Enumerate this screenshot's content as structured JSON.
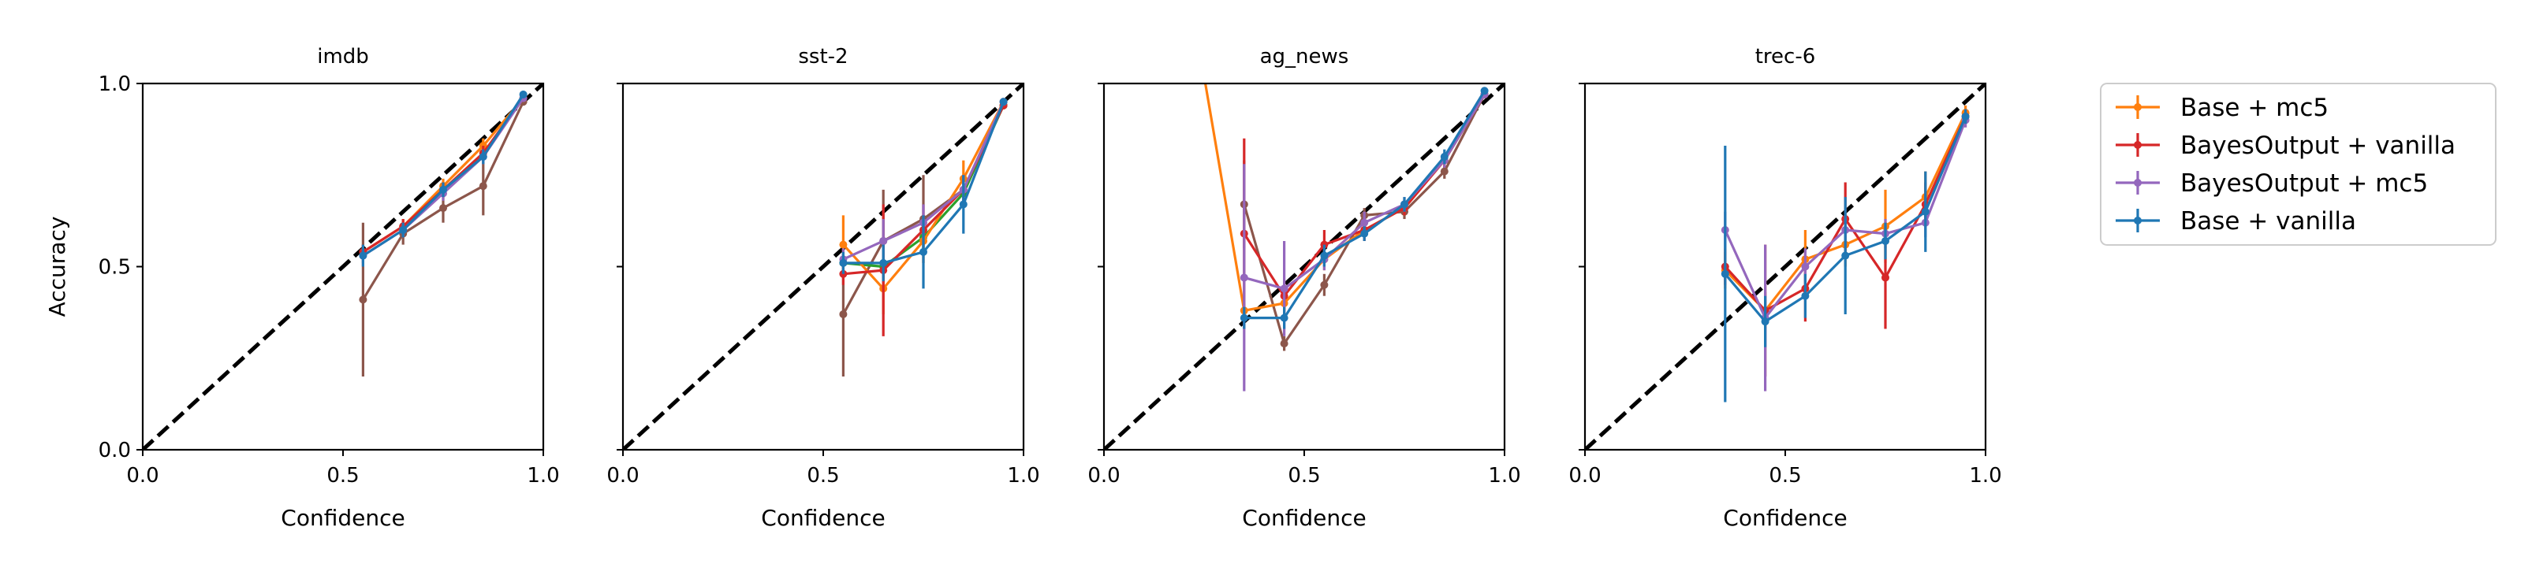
{
  "figure": {
    "legend": {
      "placement": "right, outside plots",
      "entries": [
        "Base + mc5",
        "BayesOutput + vanilla",
        "BayesOutput + mc5",
        "Base + vanilla"
      ]
    }
  },
  "chart_data": [
    {
      "type": "line",
      "title": "imdb",
      "xlabel": "Confidence",
      "ylabel": "Accuracy",
      "xlim": [
        0,
        1
      ],
      "ylim": [
        0,
        1
      ],
      "xticks": [
        0.0,
        0.5,
        1.0
      ],
      "yticks": [
        0.0,
        0.5,
        1.0
      ],
      "xtick_labels": [
        "0.0",
        "0.5",
        "1.0"
      ],
      "ytick_labels": [
        "0.0",
        "0.5",
        "1.0"
      ],
      "reference_line": {
        "from": [
          0,
          0
        ],
        "to": [
          1,
          1
        ],
        "style": "dashed",
        "color": "#000000"
      },
      "series": [
        {
          "color": "#8c564b",
          "legend": false,
          "x": [
            0.55,
            0.65,
            0.75,
            0.85,
            0.95
          ],
          "y": [
            0.41,
            0.59,
            0.66,
            0.72,
            0.95
          ],
          "err": [
            0.21,
            0.03,
            0.04,
            0.08,
            0.01
          ]
        },
        {
          "name": "Base + mc5",
          "color": "#ff7f0e",
          "legend": true,
          "x": [
            0.55,
            0.65,
            0.75,
            0.85,
            0.95
          ],
          "y": [
            0.54,
            0.61,
            0.72,
            0.83,
            0.96
          ],
          "err": [
            0.02,
            0.02,
            0.02,
            0.02,
            0.01
          ]
        },
        {
          "name": "BayesOutput + vanilla",
          "color": "#d62728",
          "legend": true,
          "x": [
            0.55,
            0.65,
            0.75,
            0.85,
            0.95
          ],
          "y": [
            0.54,
            0.61,
            0.71,
            0.81,
            0.96
          ],
          "err": [
            0.02,
            0.02,
            0.02,
            0.02,
            0.01
          ]
        },
        {
          "name": "BayesOutput + mc5",
          "color": "#9467bd",
          "legend": true,
          "x": [
            0.55,
            0.65,
            0.75,
            0.85,
            0.95
          ],
          "y": [
            0.53,
            0.6,
            0.7,
            0.8,
            0.96
          ],
          "err": [
            0.02,
            0.02,
            0.02,
            0.02,
            0.01
          ]
        },
        {
          "name": "Base + vanilla",
          "color": "#1f77b4",
          "legend": true,
          "x": [
            0.55,
            0.65,
            0.75,
            0.85,
            0.95
          ],
          "y": [
            0.53,
            0.6,
            0.71,
            0.8,
            0.97
          ],
          "err": [
            0.03,
            0.02,
            0.02,
            0.02,
            0.01
          ]
        }
      ]
    },
    {
      "type": "line",
      "title": "sst-2",
      "xlabel": "Confidence",
      "ylabel": "",
      "xlim": [
        0,
        1
      ],
      "ylim": [
        0,
        1
      ],
      "xticks": [
        0.0,
        0.5,
        1.0
      ],
      "yticks": [
        0.0,
        0.5,
        1.0
      ],
      "xtick_labels": [
        "0.0",
        "0.5",
        "1.0"
      ],
      "ytick_labels": [],
      "reference_line": {
        "from": [
          0,
          0
        ],
        "to": [
          1,
          1
        ],
        "style": "dashed",
        "color": "#000000"
      },
      "series": [
        {
          "color": "#8c564b",
          "legend": false,
          "x": [
            0.55,
            0.65,
            0.75,
            0.85,
            0.95
          ],
          "y": [
            0.37,
            0.57,
            0.63,
            0.71,
            0.94
          ],
          "err": [
            0.17,
            0.14,
            0.12,
            0.04,
            0.01
          ]
        },
        {
          "color": "#2ca02c",
          "legend": false,
          "x": [
            0.55,
            0.65,
            0.75,
            0.85,
            0.95
          ],
          "y": [
            0.51,
            0.5,
            0.58,
            0.7,
            0.94
          ],
          "err": [
            0.02,
            0.03,
            0.03,
            0.03,
            0.01
          ]
        },
        {
          "name": "Base + mc5",
          "color": "#ff7f0e",
          "legend": true,
          "x": [
            0.55,
            0.65,
            0.75,
            0.85,
            0.95
          ],
          "y": [
            0.56,
            0.44,
            0.57,
            0.74,
            0.95
          ],
          "err": [
            0.08,
            0.07,
            0.06,
            0.05,
            0.01
          ]
        },
        {
          "name": "BayesOutput + vanilla",
          "color": "#d62728",
          "legend": true,
          "x": [
            0.55,
            0.65,
            0.75,
            0.85,
            0.95
          ],
          "y": [
            0.48,
            0.49,
            0.6,
            0.71,
            0.94
          ],
          "err": [
            0.03,
            0.18,
            0.07,
            0.04,
            0.01
          ]
        },
        {
          "name": "BayesOutput + mc5",
          "color": "#9467bd",
          "legend": true,
          "x": [
            0.55,
            0.65,
            0.75,
            0.85,
            0.95
          ],
          "y": [
            0.52,
            0.57,
            0.62,
            0.71,
            0.95
          ],
          "err": [
            0.03,
            0.06,
            0.05,
            0.04,
            0.01
          ]
        },
        {
          "name": "Base + vanilla",
          "color": "#1f77b4",
          "legend": true,
          "x": [
            0.55,
            0.65,
            0.75,
            0.85,
            0.95
          ],
          "y": [
            0.51,
            0.51,
            0.54,
            0.67,
            0.95
          ],
          "err": [
            0.03,
            0.05,
            0.1,
            0.08,
            0.01
          ]
        }
      ]
    },
    {
      "type": "line",
      "title": "ag_news",
      "xlabel": "Confidence",
      "ylabel": "",
      "xlim": [
        0,
        1
      ],
      "ylim": [
        0,
        1
      ],
      "xticks": [
        0.0,
        0.5,
        1.0
      ],
      "yticks": [
        0.0,
        0.5,
        1.0
      ],
      "xtick_labels": [
        "0.0",
        "0.5",
        "1.0"
      ],
      "ytick_labels": [],
      "reference_line": {
        "from": [
          0,
          0
        ],
        "to": [
          1,
          1
        ],
        "style": "dashed",
        "color": "#000000"
      },
      "series": [
        {
          "color": "#8c564b",
          "legend": false,
          "x": [
            0.35,
            0.45,
            0.55,
            0.65,
            0.75,
            0.85,
            0.95
          ],
          "y": [
            0.67,
            0.29,
            0.45,
            0.64,
            0.65,
            0.76,
            0.97
          ],
          "err": [
            0.12,
            0.02,
            0.03,
            0.02,
            0.02,
            0.02,
            0.01
          ]
        },
        {
          "name": "Base + mc5",
          "color": "#ff7f0e",
          "legend": true,
          "x": [
            0.25,
            0.35,
            0.45,
            0.55,
            0.65,
            0.75,
            0.85,
            0.95
          ],
          "y": [
            1.02,
            0.38,
            0.4,
            0.52,
            0.6,
            0.66,
            0.79,
            0.97
          ],
          "err": [
            0,
            0.02,
            0.03,
            0.03,
            0.02,
            0.02,
            0.02,
            0.01
          ]
        },
        {
          "name": "BayesOutput + vanilla",
          "color": "#d62728",
          "legend": true,
          "x": [
            0.35,
            0.45,
            0.55,
            0.65,
            0.75,
            0.85,
            0.95
          ],
          "y": [
            0.59,
            0.42,
            0.56,
            0.6,
            0.66,
            0.79,
            0.97
          ],
          "err": [
            0.26,
            0.04,
            0.04,
            0.03,
            0.02,
            0.02,
            0.01
          ]
        },
        {
          "name": "BayesOutput + mc5",
          "color": "#9467bd",
          "legend": true,
          "x": [
            0.35,
            0.45,
            0.55,
            0.65,
            0.75,
            0.85,
            0.95
          ],
          "y": [
            0.47,
            0.44,
            0.52,
            0.62,
            0.67,
            0.79,
            0.97
          ],
          "err": [
            0.31,
            0.13,
            0.03,
            0.03,
            0.02,
            0.02,
            0.01
          ]
        },
        {
          "name": "Base + vanilla",
          "color": "#1f77b4",
          "legend": true,
          "x": [
            0.35,
            0.45,
            0.55,
            0.65,
            0.75,
            0.85,
            0.95
          ],
          "y": [
            0.36,
            0.36,
            0.53,
            0.59,
            0.67,
            0.8,
            0.98
          ],
          "err": [
            0.03,
            0.03,
            0.03,
            0.02,
            0.02,
            0.02,
            0.01
          ]
        }
      ]
    },
    {
      "type": "line",
      "title": "trec-6",
      "xlabel": "Confidence",
      "ylabel": "",
      "xlim": [
        0,
        1
      ],
      "ylim": [
        0,
        1
      ],
      "xticks": [
        0.0,
        0.5,
        1.0
      ],
      "yticks": [
        0.0,
        0.5,
        1.0
      ],
      "xtick_labels": [
        "0.0",
        "0.5",
        "1.0"
      ],
      "ytick_labels": [],
      "reference_line": {
        "from": [
          0,
          0
        ],
        "to": [
          1,
          1
        ],
        "style": "dashed",
        "color": "#000000"
      },
      "series": [
        {
          "name": "Base + mc5",
          "color": "#ff7f0e",
          "legend": true,
          "x": [
            0.35,
            0.45,
            0.55,
            0.65,
            0.75,
            0.85,
            0.95
          ],
          "y": [
            0.49,
            0.38,
            0.52,
            0.56,
            0.61,
            0.69,
            0.92
          ],
          "err": [
            0.05,
            0.05,
            0.08,
            0.06,
            0.1,
            0.07,
            0.02
          ]
        },
        {
          "name": "BayesOutput + vanilla",
          "color": "#d62728",
          "legend": true,
          "x": [
            0.35,
            0.45,
            0.55,
            0.65,
            0.75,
            0.85,
            0.95
          ],
          "y": [
            0.5,
            0.38,
            0.44,
            0.63,
            0.47,
            0.67,
            0.91
          ],
          "err": [
            0.05,
            0.18,
            0.09,
            0.1,
            0.14,
            0.06,
            0.02
          ]
        },
        {
          "name": "BayesOutput + mc5",
          "color": "#9467bd",
          "legend": true,
          "x": [
            0.35,
            0.45,
            0.55,
            0.65,
            0.75,
            0.85,
            0.95
          ],
          "y": [
            0.6,
            0.36,
            0.5,
            0.6,
            0.59,
            0.62,
            0.9
          ],
          "err": [
            0.05,
            0.2,
            0.05,
            0.04,
            0.04,
            0.04,
            0.02
          ]
        },
        {
          "name": "Base + vanilla",
          "color": "#1f77b4",
          "legend": true,
          "x": [
            0.35,
            0.45,
            0.55,
            0.65,
            0.75,
            0.85,
            0.95
          ],
          "y": [
            0.48,
            0.35,
            0.42,
            0.53,
            0.57,
            0.65,
            0.91
          ],
          "err": [
            0.35,
            0.07,
            0.06,
            0.16,
            0.05,
            0.11,
            0.02
          ]
        }
      ]
    }
  ]
}
